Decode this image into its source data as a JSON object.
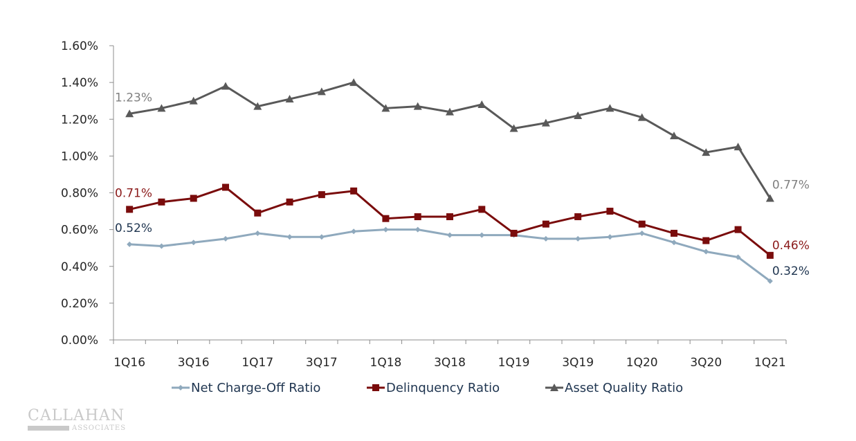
{
  "chart_data": {
    "type": "line",
    "title": "",
    "xlabel": "",
    "ylabel": "",
    "ylim": [
      0,
      1.6
    ],
    "yticks": [
      "0.00%",
      "0.20%",
      "0.40%",
      "0.60%",
      "0.80%",
      "1.00%",
      "1.20%",
      "1.40%",
      "1.60%"
    ],
    "ytick_values": [
      0,
      0.2,
      0.4,
      0.6,
      0.8,
      1.0,
      1.2,
      1.4,
      1.6
    ],
    "grid": false,
    "legend_position": "bottom",
    "categories": [
      "1Q16",
      "2Q16",
      "3Q16",
      "4Q16",
      "1Q17",
      "2Q17",
      "3Q17",
      "4Q17",
      "1Q18",
      "2Q18",
      "3Q18",
      "4Q18",
      "1Q19",
      "2Q19",
      "3Q19",
      "4Q19",
      "1Q20",
      "2Q20",
      "3Q20",
      "4Q20",
      "1Q21"
    ],
    "xtick_labels": [
      "1Q16",
      "3Q16",
      "1Q17",
      "3Q17",
      "1Q18",
      "3Q18",
      "1Q19",
      "3Q19",
      "1Q20",
      "3Q20",
      "1Q21"
    ],
    "series": [
      {
        "name": "Net Charge-Off Ratio",
        "color": "#8fa9bd",
        "label_color": "#1f3550",
        "marker": "diamond",
        "values": [
          0.52,
          0.51,
          0.53,
          0.55,
          0.58,
          0.56,
          0.56,
          0.59,
          0.6,
          0.6,
          0.57,
          0.57,
          0.57,
          0.55,
          0.55,
          0.56,
          0.58,
          0.53,
          0.48,
          0.45,
          0.32
        ],
        "first_label": "0.52%",
        "last_label": "0.32%"
      },
      {
        "name": "Delinquency Ratio",
        "color": "#7a0c0c",
        "label_color": "#8b1a1a",
        "marker": "square",
        "values": [
          0.71,
          0.75,
          0.77,
          0.83,
          0.69,
          0.75,
          0.79,
          0.81,
          0.66,
          0.67,
          0.67,
          0.71,
          0.58,
          0.63,
          0.67,
          0.7,
          0.63,
          0.58,
          0.54,
          0.6,
          0.46
        ],
        "first_label": "0.71%",
        "last_label": "0.46%"
      },
      {
        "name": "Asset Quality Ratio",
        "color": "#595959",
        "label_color": "#7f7f7f",
        "marker": "triangle",
        "values": [
          1.23,
          1.26,
          1.3,
          1.38,
          1.27,
          1.31,
          1.35,
          1.4,
          1.26,
          1.27,
          1.24,
          1.28,
          1.15,
          1.18,
          1.22,
          1.26,
          1.21,
          1.11,
          1.02,
          1.05,
          0.77
        ],
        "first_label": "1.23%",
        "last_label": "0.77%"
      }
    ]
  },
  "logo": {
    "name": "CALLAHAN",
    "sub": "ASSOCIATES"
  },
  "colors": {
    "axis": "#8c8c8c"
  }
}
